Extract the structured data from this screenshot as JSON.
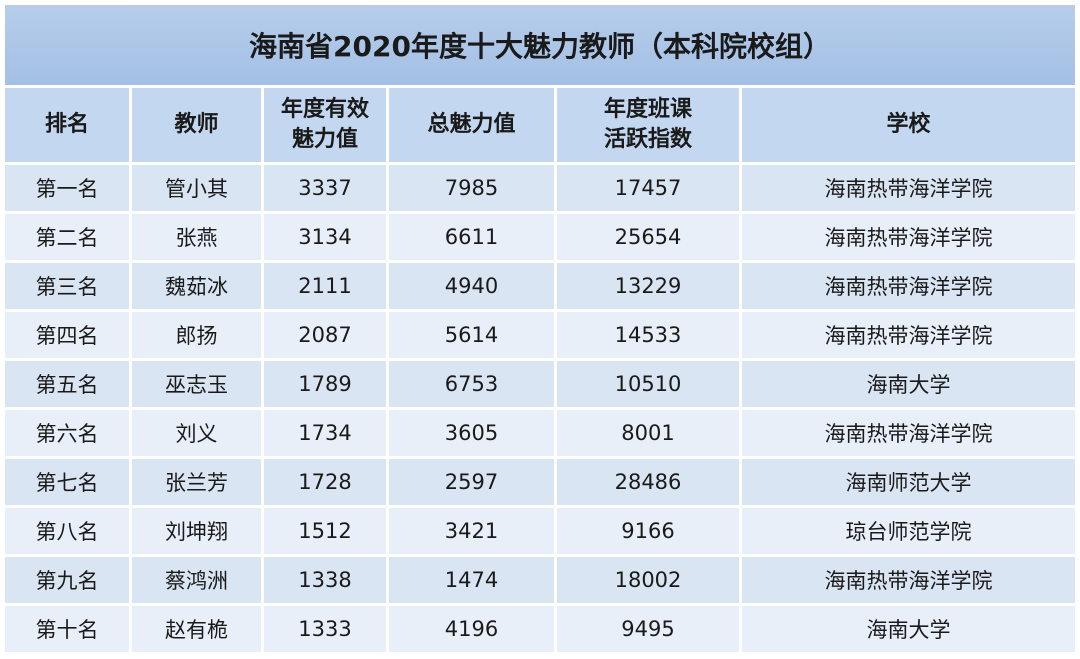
{
  "title": "海南省2020年度十大魅力教师（本科院校组）",
  "table": {
    "headers": [
      "排名",
      "教师",
      "年度有效魅力值",
      "总魅力值",
      "年度班课活跃指数",
      "学校"
    ],
    "rows": [
      [
        "第一名",
        "管小其",
        3337,
        7985,
        17457,
        "海南热带海洋学院"
      ],
      [
        "第二名",
        "张燕",
        3134,
        6611,
        25654,
        "海南热带海洋学院"
      ],
      [
        "第三名",
        "魏茹冰",
        2111,
        4940,
        13229,
        "海南热带海洋学院"
      ],
      [
        "第四名",
        "郎扬",
        2087,
        5614,
        14533,
        "海南热带海洋学院"
      ],
      [
        "第五名",
        "巫志玉",
        1789,
        6753,
        10510,
        "海南大学"
      ],
      [
        "第六名",
        "刘义",
        1734,
        3605,
        8001,
        "海南热带海洋学院"
      ],
      [
        "第七名",
        "张兰芳",
        1728,
        2597,
        28486,
        "海南师范大学"
      ],
      [
        "第八名",
        "刘坤翔",
        1512,
        3421,
        9166,
        "琼台师范学院"
      ],
      [
        "第九名",
        "蔡鸿洲",
        1338,
        1474,
        18002,
        "海南热带海洋学院"
      ],
      [
        "第十名",
        "赵有桅",
        1333,
        4196,
        9495,
        "海南大学"
      ]
    ]
  }
}
